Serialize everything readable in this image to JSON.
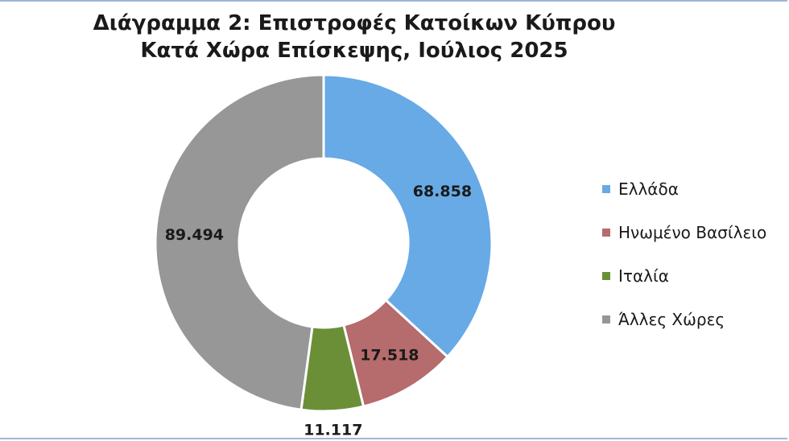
{
  "chart_data": {
    "type": "pie",
    "variant": "donut",
    "title_lines": [
      "Διάγραμμα 2: Επιστροφές Κατοίκων Κύπρου",
      "Κατά Χώρα Επίσκεψης, Ιούλιος 2025"
    ],
    "categories": [
      "Ελλάδα",
      "Ηνωμένο Βασίλειο",
      "Ιταλία",
      "Άλλες Χώρες"
    ],
    "values": [
      68858,
      17518,
      11117,
      89494
    ],
    "labels": [
      "68.858",
      "17.518",
      "11.117",
      "89.494"
    ],
    "colors": [
      "#67aae6",
      "#b66b6c",
      "#6b8f37",
      "#979797"
    ],
    "legend_position": "right"
  }
}
